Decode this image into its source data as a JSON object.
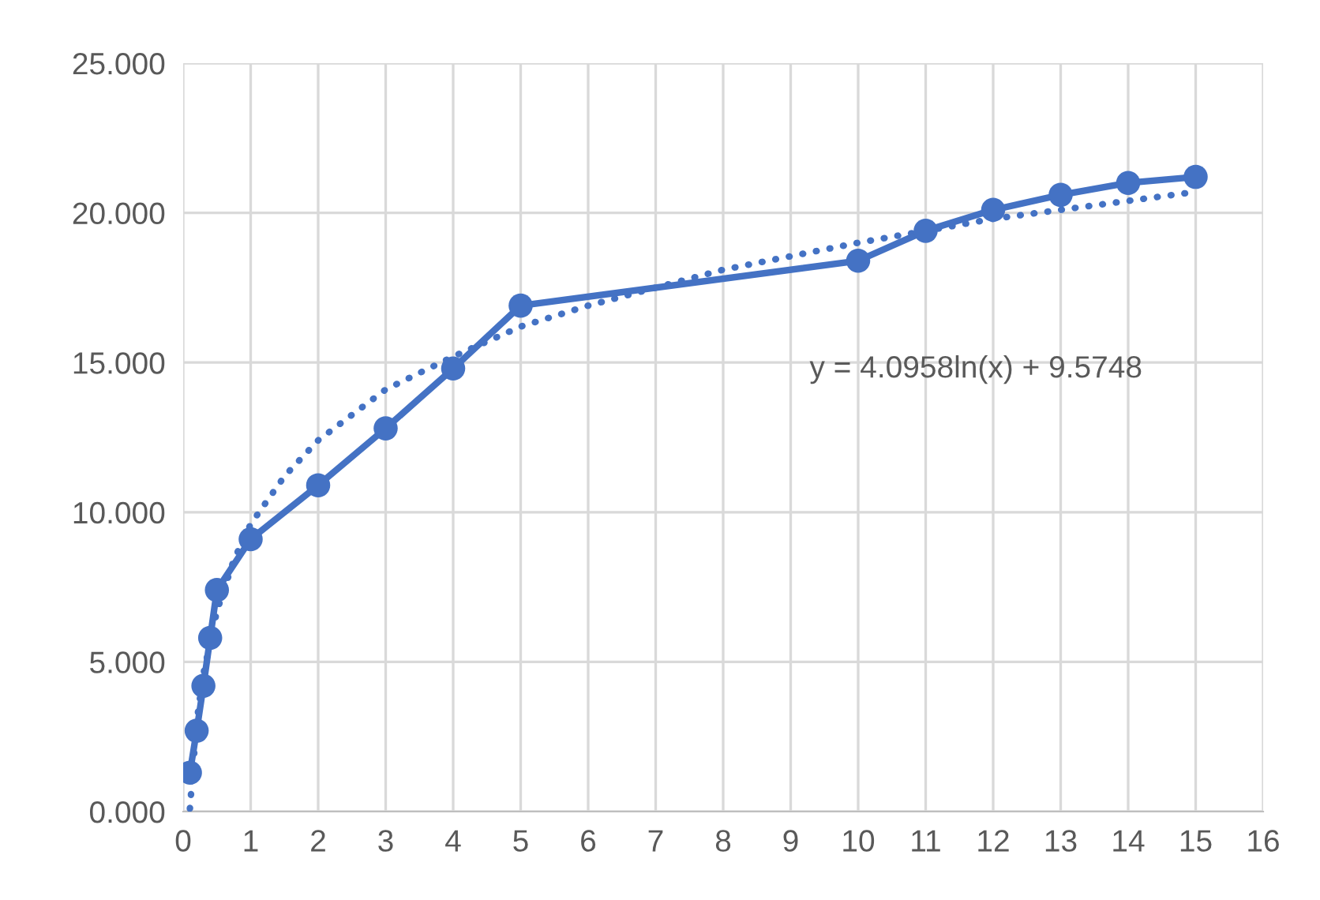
{
  "chart_data": {
    "type": "line",
    "series": [
      {
        "color": "#4472c4",
        "marker": "circle",
        "line_style": "solid",
        "x": [
          0.1,
          0.2,
          0.3,
          0.4,
          0.5,
          1,
          2,
          3,
          4,
          5,
          10,
          11,
          12,
          13,
          14,
          15
        ],
        "values": [
          1.3,
          2.7,
          4.2,
          5.8,
          7.4,
          9.1,
          10.9,
          12.8,
          14.8,
          16.9,
          18.4,
          19.4,
          20.1,
          20.6,
          21.0,
          21.2
        ]
      },
      {
        "color": "#4472c4",
        "marker": "none",
        "line_style": "dotted",
        "x": [
          0.1,
          0.2,
          0.3,
          0.5,
          0.75,
          1,
          1.5,
          2,
          3,
          4,
          5,
          6,
          7,
          8,
          10,
          12,
          15
        ],
        "values": [
          0.1,
          3.0,
          4.6,
          6.7,
          8.4,
          9.6,
          11.2,
          12.4,
          14.1,
          15.2,
          16.2,
          16.9,
          17.5,
          18.1,
          19.0,
          19.8,
          20.7
        ]
      }
    ],
    "xlim": [
      0,
      16
    ],
    "xticks": [
      0,
      1,
      2,
      3,
      4,
      5,
      6,
      7,
      8,
      9,
      10,
      11,
      12,
      13,
      14,
      15,
      16
    ],
    "ylim": [
      0,
      25
    ],
    "yticks": [
      {
        "value": 0,
        "label": "0.000"
      },
      {
        "value": 5,
        "label": "5.000"
      },
      {
        "value": 10,
        "label": "10.000"
      },
      {
        "value": 15,
        "label": "15.000"
      },
      {
        "value": 20,
        "label": "20.000"
      },
      {
        "value": 25,
        "label": "25.000"
      }
    ],
    "grid": true,
    "legend": false,
    "annotations": [
      "y = 4.0958ln(x) + 9.5748"
    ]
  }
}
